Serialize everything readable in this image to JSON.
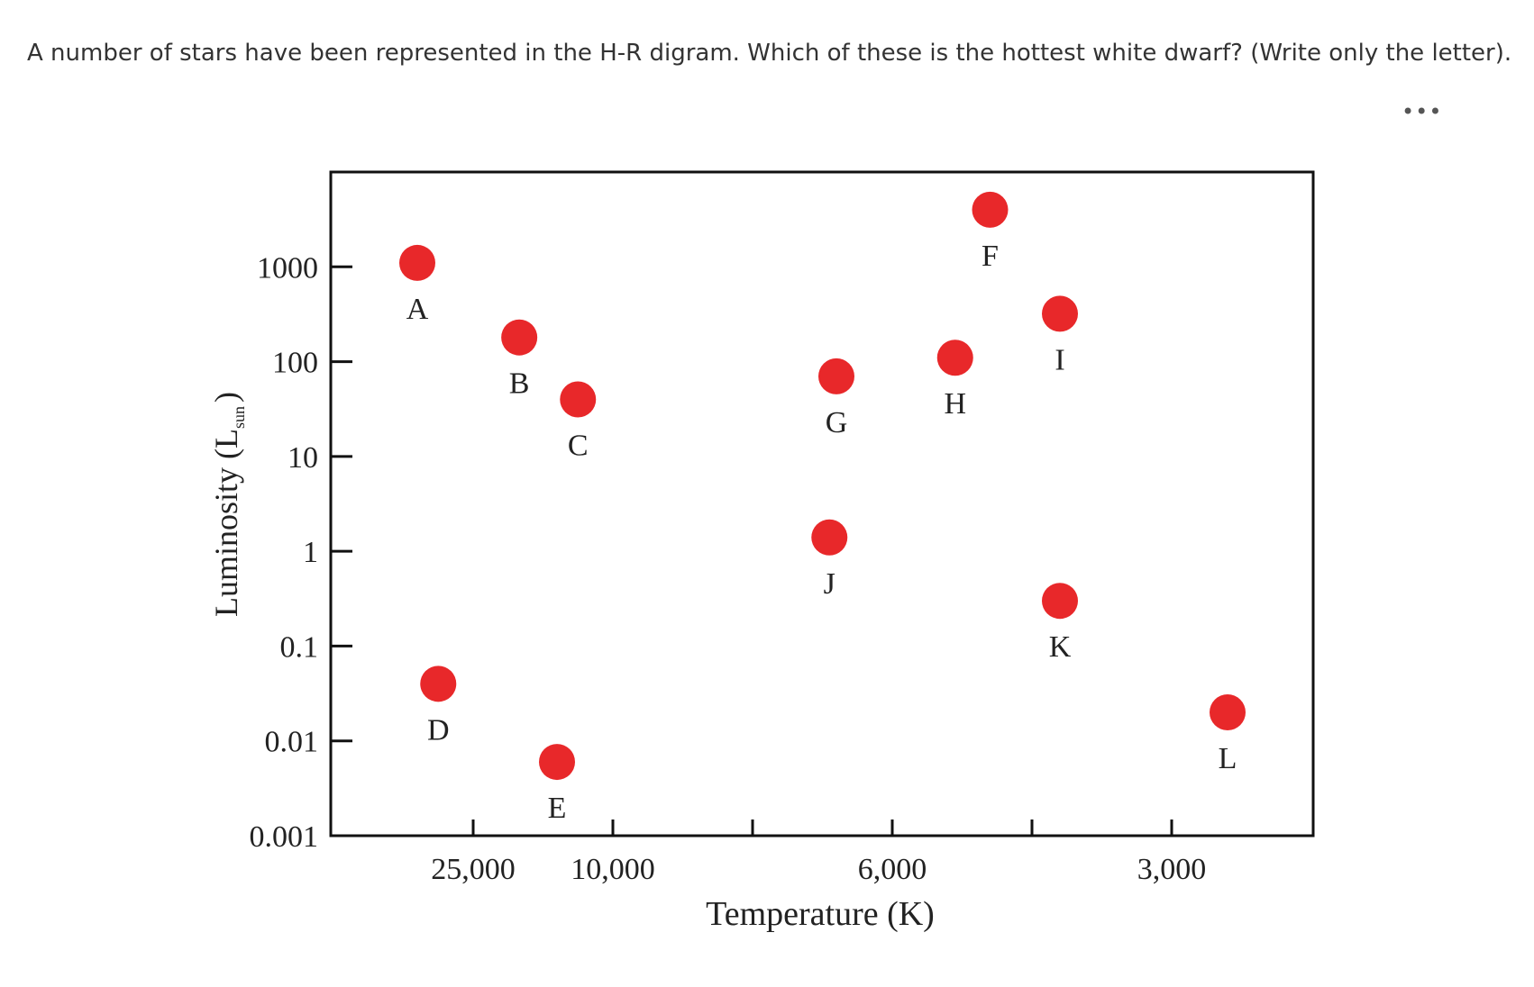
{
  "question": {
    "text": "A number of stars have been represented in the H-R digram. Which of these is the hottest white dwarf? (Write only the letter)."
  },
  "toolbar": {
    "more_label": "•••"
  },
  "colors": {
    "star": "#e8282a",
    "axis": "#111111",
    "text": "#222222"
  },
  "chart_data": {
    "type": "scatter",
    "xlabel": "Temperature (K)",
    "ylabel_main": "Luminosity (L",
    "ylabel_sub": "sun",
    "ylabel_close": ")",
    "y_scale": "log",
    "ylim": [
      0.001,
      10000
    ],
    "y_ticks": [
      {
        "value": 1000,
        "label": "1000"
      },
      {
        "value": 100,
        "label": "100"
      },
      {
        "value": 10,
        "label": "10"
      },
      {
        "value": 1,
        "label": "1"
      },
      {
        "value": 0.1,
        "label": "0.1"
      },
      {
        "value": 0.01,
        "label": "0.01"
      },
      {
        "value": 0.001,
        "label": "0.001"
      }
    ],
    "x_scale": "categorical-reversed",
    "x_ticks": [
      {
        "value": 25000,
        "label": "25,000"
      },
      {
        "value": 10000,
        "label": "10,000"
      },
      {
        "value": null,
        "label": ""
      },
      {
        "value": 6000,
        "label": "6,000"
      },
      {
        "value": null,
        "label": ""
      },
      {
        "value": 3000,
        "label": "3,000"
      }
    ],
    "grid": false,
    "points": [
      {
        "label": "A",
        "tick_pos": -0.4,
        "y": 1100,
        "label_pos": "below"
      },
      {
        "label": "B",
        "tick_pos": 0.33,
        "y": 180,
        "label_pos": "below"
      },
      {
        "label": "C",
        "tick_pos": 0.75,
        "y": 40,
        "label_pos": "below"
      },
      {
        "label": "D",
        "tick_pos": -0.25,
        "y": 0.04,
        "label_pos": "below"
      },
      {
        "label": "E",
        "tick_pos": 0.6,
        "y": 0.006,
        "label_pos": "below"
      },
      {
        "label": "F",
        "tick_pos": 3.7,
        "y": 4000,
        "label_pos": "below"
      },
      {
        "label": "G",
        "tick_pos": 2.6,
        "y": 70,
        "label_pos": "below"
      },
      {
        "label": "H",
        "tick_pos": 3.45,
        "y": 110,
        "label_pos": "below"
      },
      {
        "label": "I",
        "tick_pos": 4.2,
        "y": 320,
        "label_pos": "below"
      },
      {
        "label": "J",
        "tick_pos": 2.55,
        "y": 1.4,
        "label_pos": "below"
      },
      {
        "label": "K",
        "tick_pos": 4.2,
        "y": 0.3,
        "label_pos": "below"
      },
      {
        "label": "L",
        "tick_pos": 5.4,
        "y": 0.02,
        "label_pos": "below"
      }
    ]
  }
}
